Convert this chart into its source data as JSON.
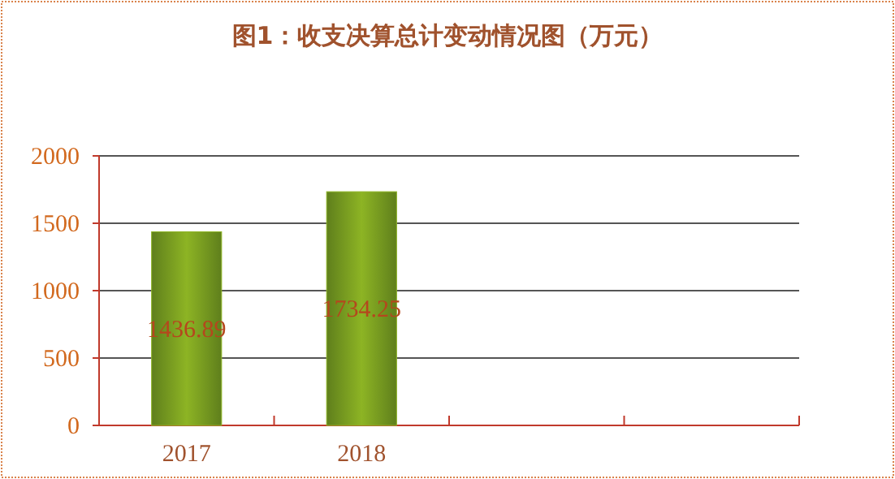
{
  "chart_data": {
    "type": "bar",
    "title": "图1：收支决算总计变动情况图（万元）",
    "categories": [
      "2017",
      "2018",
      null,
      null
    ],
    "values": [
      1436.89,
      1734.25,
      null,
      null
    ],
    "color": "#8db424",
    "ylim": [
      0,
      2000
    ],
    "yticks": [
      0,
      500,
      1000,
      1500,
      2000
    ],
    "grid": "y",
    "data_labels": true
  }
}
